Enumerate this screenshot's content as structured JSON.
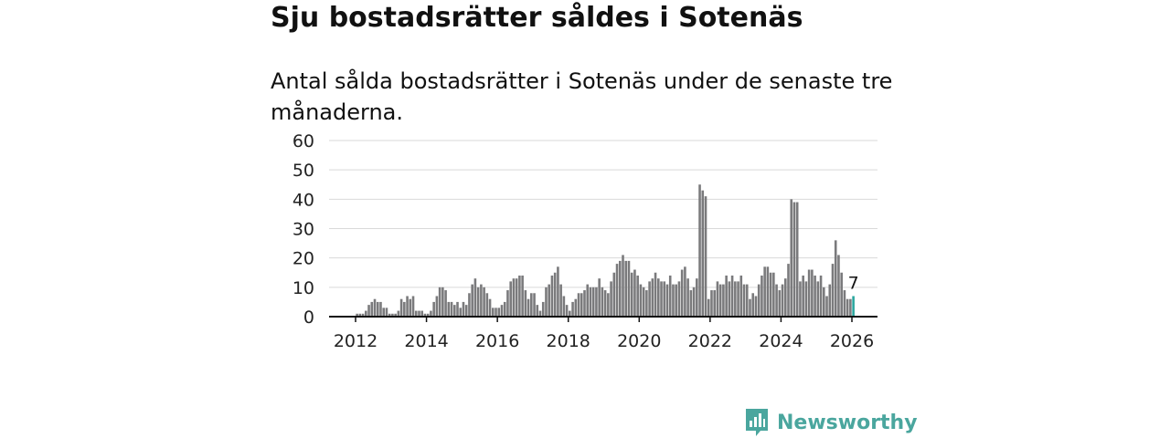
{
  "header": {
    "title": "Sju bostadsrätter såldes i Sotenäs",
    "subtitle": "Antal sålda bostadsrätter i Sotenäs under de senaste tre månaderna."
  },
  "brand": {
    "name": "Newsworthy",
    "color": "#4aa69e",
    "icon": "newsworthy-logo-icon"
  },
  "chart_data": {
    "type": "bar",
    "title": "",
    "xlabel": "",
    "ylabel": "",
    "ylim": [
      0,
      60
    ],
    "yticks": [
      "0",
      "10",
      "20",
      "30",
      "40",
      "50",
      "60"
    ],
    "xticks": [
      "2012",
      "2014",
      "2016",
      "2018",
      "2020",
      "2022",
      "2024",
      "2026"
    ],
    "x_start": "2011-08",
    "bar_color": "#7a7a7c",
    "highlight_color": "#2aa69e",
    "highlight_label": "7",
    "values": [
      0,
      0,
      0,
      0,
      0,
      1,
      1,
      1,
      2,
      4,
      5,
      6,
      5,
      5,
      3,
      3,
      1,
      1,
      1,
      2,
      6,
      5,
      7,
      6,
      7,
      2,
      2,
      2,
      1,
      1,
      2,
      5,
      7,
      10,
      10,
      9,
      5,
      5,
      4,
      5,
      3,
      5,
      4,
      8,
      11,
      13,
      10,
      11,
      10,
      8,
      6,
      3,
      3,
      3,
      4,
      5,
      9,
      12,
      13,
      13,
      14,
      14,
      9,
      6,
      8,
      8,
      4,
      2,
      5,
      10,
      11,
      14,
      15,
      17,
      11,
      7,
      4,
      2,
      5,
      6,
      8,
      8,
      9,
      11,
      10,
      10,
      10,
      13,
      10,
      9,
      8,
      12,
      15,
      18,
      19,
      21,
      19,
      19,
      15,
      16,
      14,
      11,
      10,
      9,
      12,
      13,
      15,
      13,
      12,
      12,
      11,
      14,
      11,
      11,
      12,
      16,
      17,
      13,
      9,
      10,
      13,
      45,
      43,
      41,
      6,
      9,
      9,
      12,
      11,
      11,
      14,
      12,
      14,
      12,
      12,
      14,
      11,
      11,
      6,
      8,
      7,
      11,
      14,
      17,
      17,
      15,
      15,
      11,
      9,
      11,
      13,
      18,
      40,
      39,
      39,
      12,
      14,
      12,
      16,
      16,
      14,
      12,
      14,
      10,
      7,
      11,
      18,
      26,
      21,
      15,
      9,
      6,
      6,
      7
    ]
  }
}
